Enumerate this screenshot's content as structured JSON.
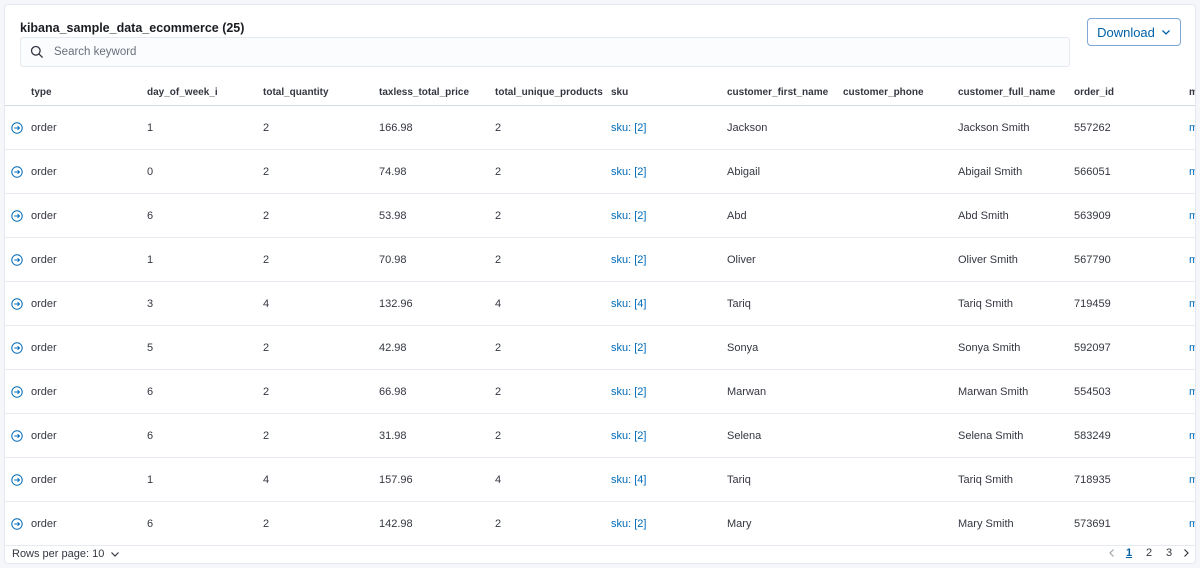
{
  "header": {
    "title": "kibana_sample_data_ecommerce (25)",
    "download_label": "Download",
    "search_placeholder": "Search keyword"
  },
  "columns": [
    "type",
    "day_of_week_i",
    "total_quantity",
    "taxless_total_price",
    "total_unique_products",
    "sku",
    "customer_first_name",
    "customer_phone",
    "customer_full_name",
    "order_id",
    "m"
  ],
  "rows": [
    [
      "order",
      "1",
      "2",
      "166.98",
      "2",
      "sku: [2]",
      "Jackson",
      "",
      "Jackson Smith",
      "557262",
      "m"
    ],
    [
      "order",
      "0",
      "2",
      "74.98",
      "2",
      "sku: [2]",
      "Abigail",
      "",
      "Abigail Smith",
      "566051",
      "m"
    ],
    [
      "order",
      "6",
      "2",
      "53.98",
      "2",
      "sku: [2]",
      "Abd",
      "",
      "Abd Smith",
      "563909",
      "m"
    ],
    [
      "order",
      "1",
      "2",
      "70.98",
      "2",
      "sku: [2]",
      "Oliver",
      "",
      "Oliver Smith",
      "567790",
      "m"
    ],
    [
      "order",
      "3",
      "4",
      "132.96",
      "4",
      "sku: [4]",
      "Tariq",
      "",
      "Tariq Smith",
      "719459",
      "m"
    ],
    [
      "order",
      "5",
      "2",
      "42.98",
      "2",
      "sku: [2]",
      "Sonya",
      "",
      "Sonya Smith",
      "592097",
      "m"
    ],
    [
      "order",
      "6",
      "2",
      "66.98",
      "2",
      "sku: [2]",
      "Marwan",
      "",
      "Marwan Smith",
      "554503",
      "m"
    ],
    [
      "order",
      "6",
      "2",
      "31.98",
      "2",
      "sku: [2]",
      "Selena",
      "",
      "Selena Smith",
      "583249",
      "m"
    ],
    [
      "order",
      "1",
      "4",
      "157.96",
      "4",
      "sku: [4]",
      "Tariq",
      "",
      "Tariq Smith",
      "718935",
      "m"
    ],
    [
      "order",
      "6",
      "2",
      "142.98",
      "2",
      "sku: [2]",
      "Mary",
      "",
      "Mary Smith",
      "573691",
      "m"
    ]
  ],
  "footer": {
    "rows_per_page": "Rows per page: 10",
    "pages": [
      "1",
      "2",
      "3"
    ],
    "current_page": "1"
  },
  "colors": {
    "accent": "#0061a6",
    "link": "#006bb8"
  }
}
